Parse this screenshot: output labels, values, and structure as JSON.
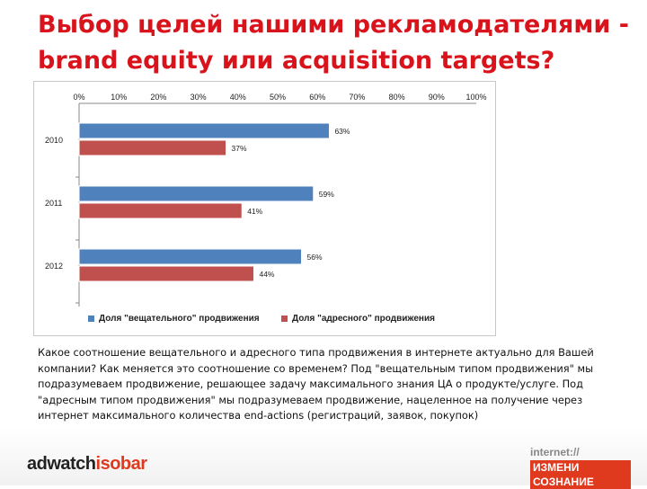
{
  "slide": {
    "title_line1": "Выбор целей нашими рекламодателями -",
    "title_line2": "brand equity или acquisition targets?",
    "description": "Какое соотношение вещательного и адресного типа продвижения в интернете актуально для Вашей компании? Как меняется это соотношение со временем? Под \"вещательным типом продвижения\" мы подразумеваем продвижение, решающее задачу максимального знания ЦА о продукте/услуге. Под \"адресным типом продвижения\" мы подразумеваем продвижение, нацеленное на получение через интернет максимального количества end-actions (регистраций, заявок, покупок)",
    "accent_color": "#d9131b"
  },
  "footer": {
    "left_logo_a": "adwatch",
    "left_logo_b": "isobar",
    "right_logo_top": "internet://",
    "right_logo_bottom": "ИЗМЕНИ СОЗНАНИЕ"
  },
  "chart_data": {
    "type": "bar",
    "orientation": "horizontal",
    "categories": [
      "2010",
      "2011",
      "2012"
    ],
    "series": [
      {
        "name": "Доля \"вещательного\" продвижения",
        "values": [
          63,
          59,
          56
        ],
        "labels": [
          "63%",
          "59%",
          "56%"
        ],
        "color": "#4f81bd"
      },
      {
        "name": "Доля \"адресного\" продвижения",
        "values": [
          37,
          41,
          44
        ],
        "labels": [
          "37%",
          "41%",
          "44%"
        ],
        "color": "#c0504d"
      }
    ],
    "xticks": [
      "0%",
      "10%",
      "20%",
      "30%",
      "40%",
      "50%",
      "60%",
      "70%",
      "80%",
      "90%",
      "100%"
    ],
    "xlim": [
      0,
      100
    ],
    "x_axis_position": "top",
    "grid": false,
    "legend_position": "bottom"
  }
}
